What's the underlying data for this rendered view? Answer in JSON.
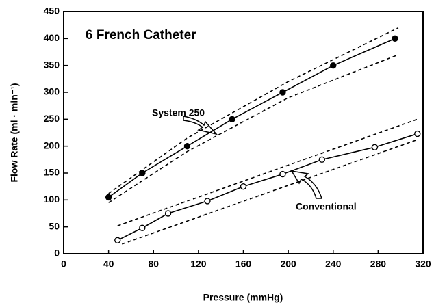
{
  "chart_data": {
    "type": "line",
    "title": "6 French Catheter",
    "x_label": "Pressure (mmHg)",
    "y_label": "Flow Rate (ml · min⁻¹)",
    "xlim": [
      0,
      320
    ],
    "ylim": [
      0,
      450
    ],
    "xticks": [
      0,
      40,
      80,
      120,
      160,
      200,
      240,
      280,
      320
    ],
    "yticks": [
      0,
      50,
      100,
      150,
      200,
      250,
      300,
      350,
      400,
      450
    ],
    "series": [
      {
        "name": "System 250",
        "color": "#000000",
        "filled": true,
        "x": [
          40,
          70,
          110,
          150,
          195,
          240,
          295
        ],
        "values": [
          105,
          150,
          200,
          250,
          300,
          350,
          400
        ]
      },
      {
        "name": "Conventional",
        "color": "#000000",
        "filled": false,
        "x": [
          48,
          70,
          93,
          128,
          160,
          195,
          230,
          277,
          315
        ],
        "values": [
          25,
          48,
          75,
          98,
          125,
          148,
          175,
          198,
          223
        ]
      }
    ],
    "bands": [
      {
        "x": [
          40,
          110,
          200,
          298
        ],
        "values": [
          112,
          215,
          320,
          420
        ]
      },
      {
        "x": [
          40,
          110,
          200,
          298
        ],
        "values": [
          95,
          190,
          290,
          370
        ]
      },
      {
        "x": [
          48,
          315
        ],
        "values": [
          52,
          250
        ]
      },
      {
        "x": [
          52,
          315
        ],
        "values": [
          18,
          212
        ]
      }
    ]
  }
}
